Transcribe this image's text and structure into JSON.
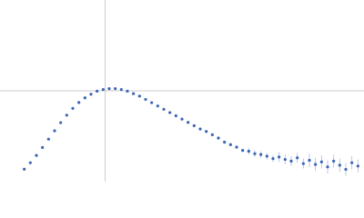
{
  "chart_data": {
    "type": "scatter",
    "x": [
      0.4,
      0.5,
      0.6,
      0.7,
      0.8,
      0.9,
      1.0,
      1.1,
      1.2,
      1.3,
      1.4,
      1.5,
      1.6,
      1.7,
      1.8,
      1.9,
      2.0,
      2.1,
      2.2,
      2.3,
      2.4,
      2.5,
      2.6,
      2.7,
      2.8,
      2.9,
      3.0,
      3.1,
      3.2,
      3.3,
      3.4,
      3.5,
      3.6,
      3.7,
      3.8,
      3.9,
      4.0,
      4.1,
      4.2,
      4.3,
      4.4,
      4.5,
      4.6,
      4.7,
      4.8,
      4.9,
      5.0,
      5.1,
      5.2,
      5.3,
      5.4,
      5.5,
      5.6,
      5.7,
      5.8,
      5.9
    ],
    "series": [
      {
        "color": "#3a65b5",
        "values": [
          0.152,
          0.23,
          0.319,
          0.416,
          0.517,
          0.618,
          0.717,
          0.808,
          0.891,
          0.962,
          1.019,
          1.063,
          1.1,
          1.12,
          1.13,
          1.13,
          1.12,
          1.1,
          1.07,
          1.04,
          1.0,
          0.96,
          0.92,
          0.88,
          0.84,
          0.8,
          0.76,
          0.72,
          0.68,
          0.64,
          0.61,
          0.57,
          0.53,
          0.48,
          0.45,
          0.42,
          0.38,
          0.37,
          0.34,
          0.33,
          0.31,
          0.28,
          0.3,
          0.27,
          0.25,
          0.29,
          0.22,
          0.26,
          0.21,
          0.24,
          0.18,
          0.25,
          0.2,
          0.15,
          0.23,
          0.19
        ],
        "errors": [
          0.005,
          0.005,
          0.005,
          0.005,
          0.005,
          0.005,
          0.005,
          0.005,
          0.005,
          0.005,
          0.005,
          0.005,
          0.005,
          0.005,
          0.005,
          0.005,
          0.005,
          0.005,
          0.005,
          0.005,
          0.005,
          0.005,
          0.01,
          0.01,
          0.01,
          0.01,
          0.01,
          0.01,
          0.01,
          0.01,
          0.01,
          0.01,
          0.02,
          0.02,
          0.02,
          0.02,
          0.02,
          0.04,
          0.04,
          0.04,
          0.04,
          0.04,
          0.06,
          0.06,
          0.06,
          0.06,
          0.06,
          0.08,
          0.08,
          0.08,
          0.08,
          0.08,
          0.08,
          0.08,
          0.08,
          0.08
        ],
        "error_color": "#a9bde0"
      }
    ],
    "xlim": [
      0,
      6
    ],
    "ylim": [
      0,
      2.208
    ],
    "reference_lines": {
      "x": 1.732,
      "y": 1.104,
      "color": "#cccccc"
    }
  }
}
